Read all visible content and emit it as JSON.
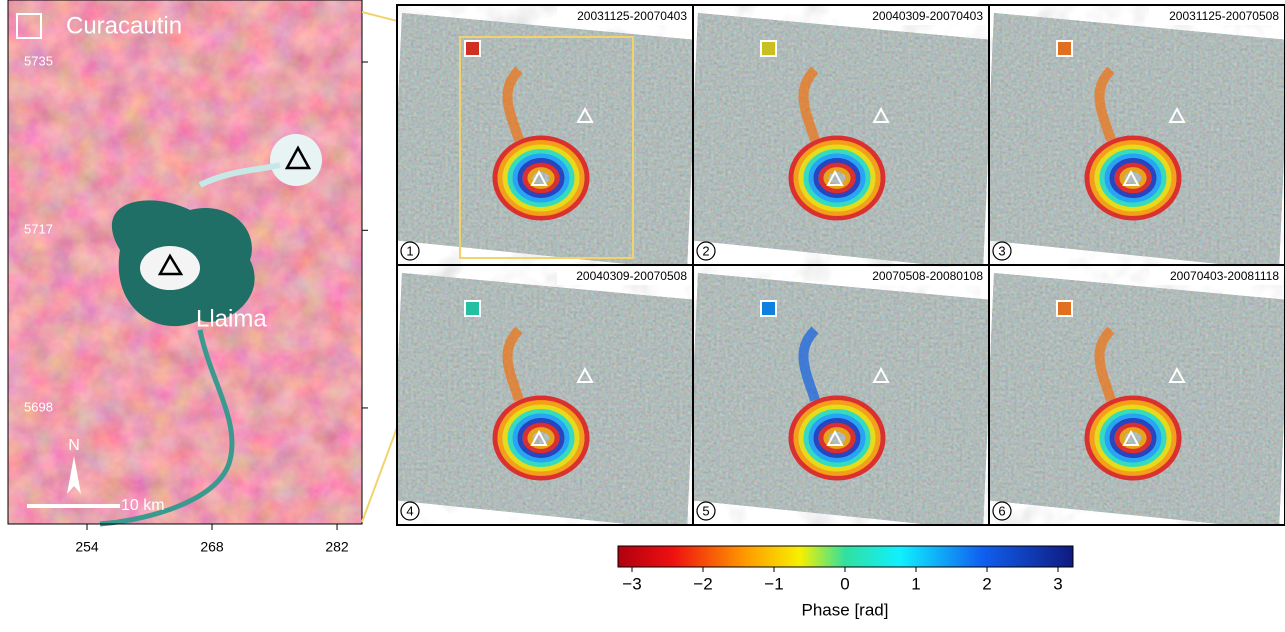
{
  "map": {
    "title": "Curacautin",
    "volcano_label": "Llaima",
    "north_label": "N",
    "scale_label": "10 km",
    "yticks": [
      5735,
      5717,
      5698
    ],
    "xticks": [
      254,
      268,
      282
    ]
  },
  "panels": [
    {
      "number": "1",
      "dates": "20031125-20070403"
    },
    {
      "number": "2",
      "dates": "20040309-20070403"
    },
    {
      "number": "3",
      "dates": "20031125-20070508"
    },
    {
      "number": "4",
      "dates": "20040309-20070508"
    },
    {
      "number": "5",
      "dates": "20070508-20080108"
    },
    {
      "number": "6",
      "dates": "20070403-20081118"
    }
  ],
  "colorbar": {
    "label": "Phase [rad]",
    "ticks": [
      {
        "value": -3,
        "label": "−3"
      },
      {
        "value": -2,
        "label": "−2"
      },
      {
        "value": -1,
        "label": "−1"
      },
      0,
      1,
      2,
      3
    ]
  }
}
